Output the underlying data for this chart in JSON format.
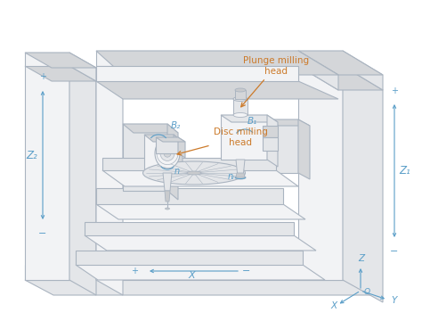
{
  "background_color": "#ffffff",
  "line_color": "#aab4c0",
  "face_light": "#f2f3f5",
  "face_mid": "#e4e6e9",
  "face_dark": "#d4d6d9",
  "face_darker": "#c8cacd",
  "blue_color": "#5a9ec8",
  "orange_color": "#cc7a2a",
  "figsize": [
    4.74,
    3.69
  ],
  "dpi": 100,
  "labels": {
    "plunge_milling": "Plunge milling\nhead",
    "disc_milling": "Disc milling\nhead",
    "B1": "B₁",
    "B2": "B₂",
    "ni": "nᵢ",
    "n": "n",
    "Z1": "Z₁",
    "Z2": "Z₂",
    "X": "X",
    "Y": "Y",
    "Z_axis": "Z",
    "O": "O",
    "plus": "+",
    "minus": "−"
  }
}
